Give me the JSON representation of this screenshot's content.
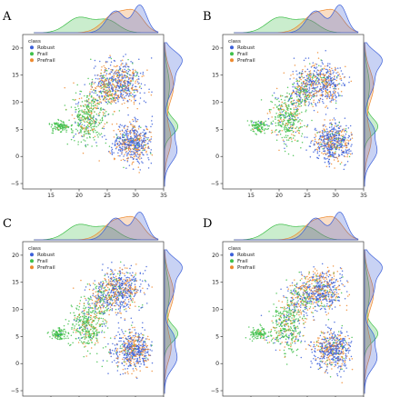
{
  "chart_data": [
    {
      "type": "scatter",
      "panel": "A",
      "legend": {
        "title": "class",
        "position": "top-left"
      },
      "xlim": [
        10,
        35
      ],
      "ylim": [
        -6,
        22.5
      ],
      "xticks": [
        "15",
        "20",
        "25",
        "30",
        "35"
      ],
      "yticks": [
        "−5",
        "0",
        "5",
        "10",
        "15",
        "20"
      ],
      "series": [
        {
          "name": "Robust",
          "color": "#3b5fd9"
        },
        {
          "name": "Frail",
          "color": "#3fbf4a"
        },
        {
          "name": "Prefrail",
          "color": "#ee8a2f"
        }
      ],
      "marginal_x": [
        {
          "series": "Frail",
          "peak_x": 20,
          "peak_density": 0.08
        },
        {
          "series": "Prefrail",
          "peak_x": 27,
          "peak_density": 0.12
        },
        {
          "series": "Robust",
          "peak_x": 30.5,
          "peak_density": 0.22
        }
      ],
      "marginal_y": [
        {
          "series": "Frail",
          "peak_y": 5.5,
          "peak_density": 0.1
        },
        {
          "series": "Robust",
          "peak_y": 3,
          "peak_density": 0.13
        }
      ]
    },
    {
      "type": "scatter",
      "panel": "B",
      "legend": {
        "title": "class",
        "position": "top-left"
      },
      "xlim": [
        10,
        35
      ],
      "ylim": [
        -6,
        22.5
      ],
      "xticks": [
        "15",
        "20",
        "25",
        "30",
        "35"
      ],
      "yticks": [
        "−5",
        "0",
        "5",
        "10",
        "15",
        "20"
      ],
      "series": [
        {
          "name": "Robust",
          "color": "#3b5fd9"
        },
        {
          "name": "Frail",
          "color": "#3fbf4a"
        },
        {
          "name": "Prefrail",
          "color": "#ee8a2f"
        }
      ]
    },
    {
      "type": "scatter",
      "panel": "C",
      "legend": {
        "title": "class",
        "position": "top-left"
      },
      "xlim": [
        10,
        35
      ],
      "ylim": [
        -6,
        22.5
      ],
      "xticks": [
        "15",
        "20",
        "25",
        "30",
        "35"
      ],
      "yticks": [
        "−5",
        "0",
        "5",
        "10",
        "15",
        "20"
      ],
      "series": [
        {
          "name": "Robust",
          "color": "#3b5fd9"
        },
        {
          "name": "Frail",
          "color": "#3fbf4a"
        },
        {
          "name": "Prefrail",
          "color": "#ee8a2f"
        }
      ]
    },
    {
      "type": "scatter",
      "panel": "D",
      "legend": {
        "title": "class",
        "position": "top-left"
      },
      "xlim": [
        10,
        35
      ],
      "ylim": [
        -6,
        22.5
      ],
      "xticks": [
        "15",
        "20",
        "25",
        "30",
        "35"
      ],
      "yticks": [
        "−5",
        "0",
        "5",
        "10",
        "15",
        "20"
      ],
      "series": [
        {
          "name": "Robust",
          "color": "#3b5fd9"
        },
        {
          "name": "Frail",
          "color": "#3fbf4a"
        },
        {
          "name": "Prefrail",
          "color": "#ee8a2f"
        }
      ]
    }
  ]
}
